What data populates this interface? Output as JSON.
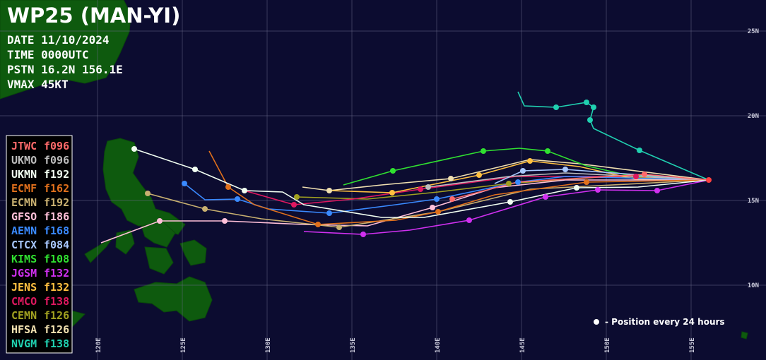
{
  "header": {
    "title": "WP25 (MAN-YI)",
    "lines": [
      "DATE 11/10/2024",
      "TIME 0000UTC",
      "PSTN 16.2N 156.1E",
      "VMAX 45KT"
    ]
  },
  "legend": [
    {
      "name": "JTWC",
      "hours": "f096",
      "color": "#ff6a6a"
    },
    {
      "name": "UKMO",
      "hours": "f096",
      "color": "#bdbdbd"
    },
    {
      "name": "UKMN",
      "hours": "f192",
      "color": "#f2fff2"
    },
    {
      "name": "ECMF",
      "hours": "f162",
      "color": "#e0701c"
    },
    {
      "name": "ECMN",
      "hours": "f192",
      "color": "#c8b070"
    },
    {
      "name": "GFSO",
      "hours": "f186",
      "color": "#ffc0d8"
    },
    {
      "name": "AEMN",
      "hours": "f168",
      "color": "#3a8aff"
    },
    {
      "name": "CTCX",
      "hours": "f084",
      "color": "#a8c8ff"
    },
    {
      "name": "KIMS",
      "hours": "f108",
      "color": "#30e030"
    },
    {
      "name": "JGSM",
      "hours": "f132",
      "color": "#d030f0"
    },
    {
      "name": "JENS",
      "hours": "f132",
      "color": "#ffc040"
    },
    {
      "name": "CMCO",
      "hours": "f138",
      "color": "#e01860"
    },
    {
      "name": "CEMN",
      "hours": "f126",
      "color": "#a0a020"
    },
    {
      "name": "HFSA",
      "hours": "f126",
      "color": "#f0e0b0"
    },
    {
      "name": "NVGM",
      "hours": "f138",
      "color": "#20d0b0"
    }
  ],
  "lon_labels": [
    "120E",
    "125E",
    "130E",
    "135E",
    "140E",
    "145E",
    "150E",
    "155E"
  ],
  "lat_labels": [
    "25N",
    "20N",
    "15N",
    "10N"
  ],
  "note": "- Position every 24 hours"
}
